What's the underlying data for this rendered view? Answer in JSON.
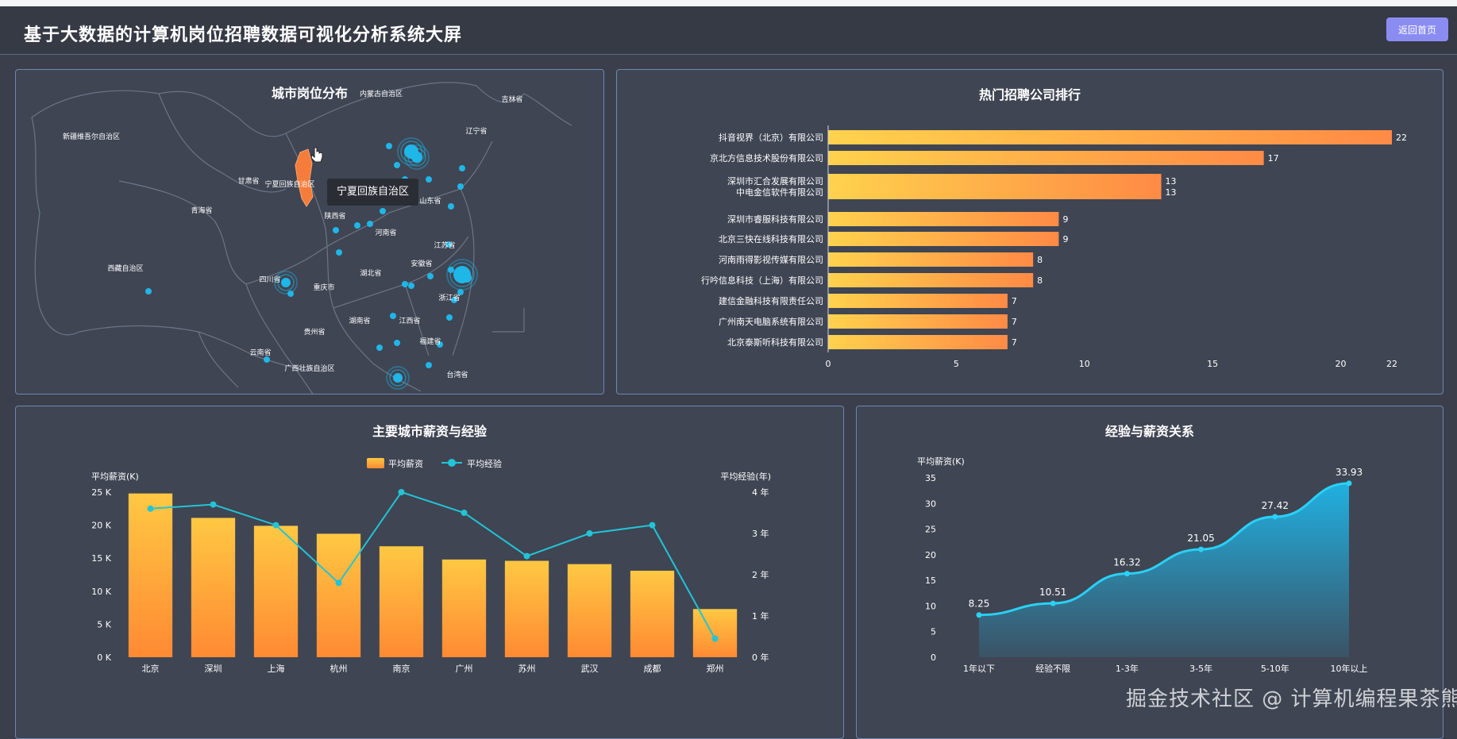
{
  "header": {
    "title": "基于大数据的计算机岗位招聘数据可视化分析系统大屏",
    "home_label": "返回首页"
  },
  "map_panel": {
    "title": "城市岗位分布",
    "tooltip": "宁夏回族自治区",
    "provinces": [
      {
        "name": "内蒙古自治区"
      },
      {
        "name": "吉林省"
      },
      {
        "name": "新疆维吾尔自治区"
      },
      {
        "name": "辽宁省"
      },
      {
        "name": "甘肃省"
      },
      {
        "name": "宁夏回族自治区"
      },
      {
        "name": "青海省"
      },
      {
        "name": "陕西省"
      },
      {
        "name": "山东省"
      },
      {
        "name": "河南省"
      },
      {
        "name": "江苏省"
      },
      {
        "name": "西藏自治区"
      },
      {
        "name": "四川省"
      },
      {
        "name": "湖北省"
      },
      {
        "name": "安徽省"
      },
      {
        "name": "重庆市"
      },
      {
        "name": "浙江省"
      },
      {
        "name": "湖南省"
      },
      {
        "name": "江西省"
      },
      {
        "name": "贵州省"
      },
      {
        "name": "福建省"
      },
      {
        "name": "云南省"
      },
      {
        "name": "广西壮族自治区"
      },
      {
        "name": "台湾省"
      }
    ],
    "colors": {
      "highlight": "#f57c3a",
      "dot": "#1fb6e8"
    }
  },
  "company_panel": {
    "title": "热门招聘公司排行",
    "chart_data": {
      "type": "bar",
      "orientation": "horizontal",
      "categories": [
        "抖音视界（北京）有限公司",
        "京北方信息技术股份有限公司",
        "深圳市汇合发展有限公司",
        "中电金信软件有限公司",
        "深圳市睿服科技有限公司",
        "北京三快在线科技有限公司",
        "河南雨得影视传媒有限公司",
        "行吟信息科技（上海）有限公司",
        "建信金融科技有限责任公司",
        "广州南天电脑系统有限公司",
        "北京泰斯听科技有限公司"
      ],
      "values": [
        22,
        17,
        13,
        13,
        9,
        9,
        8,
        8,
        7,
        7,
        7
      ],
      "xlim": [
        0,
        22
      ],
      "xticks": [
        0,
        5,
        10,
        15,
        20,
        22
      ]
    }
  },
  "salary_city_panel": {
    "title": "主要城市薪资与经验",
    "chart_data": {
      "type": "bar",
      "categories": [
        "北京",
        "深圳",
        "上海",
        "杭州",
        "南京",
        "广州",
        "苏州",
        "武汉",
        "成都",
        "郑州"
      ],
      "series": [
        {
          "name": "平均薪资",
          "type": "bar",
          "values": [
            24.8,
            21.1,
            19.9,
            18.7,
            16.8,
            14.8,
            14.6,
            14.1,
            13.1,
            7.3
          ]
        },
        {
          "name": "平均经验",
          "type": "line",
          "values": [
            3.6,
            3.7,
            3.2,
            1.8,
            4.0,
            3.5,
            2.45,
            3.0,
            3.2,
            0.45
          ]
        }
      ],
      "yleft": {
        "label": "平均薪资(K)",
        "ylim": [
          0,
          25
        ],
        "ticks": [
          "0 K",
          "5 K",
          "10 K",
          "15 K",
          "20 K",
          "25 K"
        ]
      },
      "yright": {
        "label": "平均经验(年)",
        "ylim": [
          0,
          4
        ],
        "ticks": [
          "0 年",
          "1 年",
          "2 年",
          "3 年",
          "4 年"
        ]
      },
      "legend": "top-center"
    }
  },
  "exp_salary_panel": {
    "title": "经验与薪资关系",
    "chart_data": {
      "type": "area",
      "categories": [
        "1年以下",
        "经验不限",
        "1-3年",
        "3-5年",
        "5-10年",
        "10年以上"
      ],
      "values": [
        8.25,
        10.51,
        16.32,
        21.05,
        27.42,
        33.93
      ],
      "labels": [
        "8.25",
        "10.51",
        "16.32",
        "21.05",
        "27.42",
        "33.93"
      ],
      "ylabel": "平均薪资(K)",
      "ylim": [
        0,
        35
      ],
      "yticks": [
        0,
        5,
        10,
        15,
        20,
        25,
        30,
        35
      ]
    }
  },
  "watermark": "掘金技术社区 @ 计算机编程果茶熊"
}
